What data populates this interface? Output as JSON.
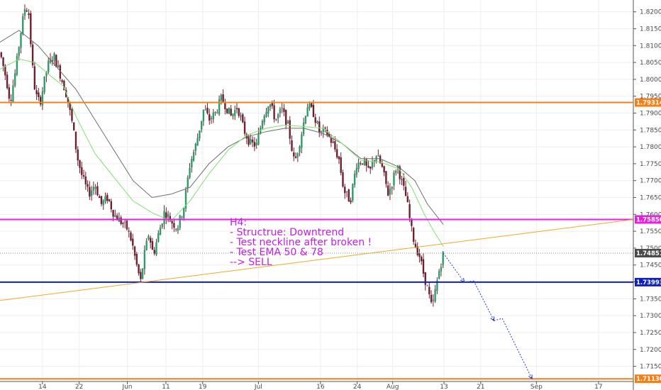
{
  "chart_data": {
    "type": "candlestick",
    "title": "",
    "ylim": [
      1.7105,
      1.8235
    ],
    "y_ticks": [
      "1.82000",
      "1.81500",
      "1.81000",
      "1.80500",
      "1.80000",
      "1.79500",
      "1.79000",
      "1.78500",
      "1.78000",
      "1.77500",
      "1.77000",
      "1.76500",
      "1.76000",
      "1.75500",
      "1.75000",
      "1.74500",
      "1.74000",
      "1.73500",
      "1.73000",
      "1.72500",
      "1.72000",
      "1.71500"
    ],
    "x_range": [
      0,
      100
    ],
    "x_ticks": [
      {
        "label": "14",
        "x": 6.7
      },
      {
        "label": "22",
        "x": 12.5
      },
      {
        "label": "Jun",
        "x": 20.1
      },
      {
        "label": "11",
        "x": 26.2
      },
      {
        "label": "19",
        "x": 32.0
      },
      {
        "label": "Jul",
        "x": 40.8
      },
      {
        "label": "16",
        "x": 50.6
      },
      {
        "label": "24",
        "x": 56.4
      },
      {
        "label": "Aug",
        "x": 62.0
      },
      {
        "label": "13",
        "x": 70.1
      },
      {
        "label": "21",
        "x": 75.9
      },
      {
        "label": "Sep",
        "x": 84.7
      },
      {
        "label": "17",
        "x": 94.5
      }
    ],
    "candle_path": [
      {
        "x": 0,
        "y": 1.808
      },
      {
        "x": 1,
        "y": 1.8
      },
      {
        "x": 1.6,
        "y": 1.7935
      },
      {
        "x": 2.5,
        "y": 1.803
      },
      {
        "x": 3.2,
        "y": 1.813
      },
      {
        "x": 4,
        "y": 1.822
      },
      {
        "x": 4.6,
        "y": 1.819
      },
      {
        "x": 5,
        "y": 1.806
      },
      {
        "x": 5.6,
        "y": 1.7955
      },
      {
        "x": 6.3,
        "y": 1.793
      },
      {
        "x": 7.5,
        "y": 1.804
      },
      {
        "x": 8.5,
        "y": 1.807
      },
      {
        "x": 9.5,
        "y": 1.8015
      },
      {
        "x": 10.5,
        "y": 1.7955
      },
      {
        "x": 11.5,
        "y": 1.786
      },
      {
        "x": 12.2,
        "y": 1.777
      },
      {
        "x": 13,
        "y": 1.771
      },
      {
        "x": 14,
        "y": 1.766
      },
      {
        "x": 15,
        "y": 1.769
      },
      {
        "x": 16,
        "y": 1.763
      },
      {
        "x": 17,
        "y": 1.765
      },
      {
        "x": 18,
        "y": 1.76
      },
      {
        "x": 19,
        "y": 1.758
      },
      {
        "x": 20,
        "y": 1.756
      },
      {
        "x": 20.8,
        "y": 1.752
      },
      {
        "x": 21.5,
        "y": 1.7455
      },
      {
        "x": 22.2,
        "y": 1.74
      },
      {
        "x": 22.8,
        "y": 1.748
      },
      {
        "x": 23.5,
        "y": 1.7545
      },
      {
        "x": 24.2,
        "y": 1.748
      },
      {
        "x": 25,
        "y": 1.754
      },
      {
        "x": 26,
        "y": 1.761
      },
      {
        "x": 27,
        "y": 1.758
      },
      {
        "x": 28,
        "y": 1.756
      },
      {
        "x": 29,
        "y": 1.762
      },
      {
        "x": 30,
        "y": 1.775
      },
      {
        "x": 31,
        "y": 1.781
      },
      {
        "x": 32.2,
        "y": 1.7915
      },
      {
        "x": 33,
        "y": 1.788
      },
      {
        "x": 34,
        "y": 1.79
      },
      {
        "x": 35,
        "y": 1.7945
      },
      {
        "x": 36.5,
        "y": 1.789
      },
      {
        "x": 37.5,
        "y": 1.792
      },
      {
        "x": 38.5,
        "y": 1.785
      },
      {
        "x": 39.5,
        "y": 1.781
      },
      {
        "x": 40.5,
        "y": 1.7805
      },
      {
        "x": 41.5,
        "y": 1.789
      },
      {
        "x": 42.5,
        "y": 1.7935
      },
      {
        "x": 43.5,
        "y": 1.788
      },
      {
        "x": 44.5,
        "y": 1.791
      },
      {
        "x": 45.5,
        "y": 1.786
      },
      {
        "x": 46.5,
        "y": 1.775
      },
      {
        "x": 47.5,
        "y": 1.783
      },
      {
        "x": 48.5,
        "y": 1.7925
      },
      {
        "x": 49.5,
        "y": 1.79
      },
      {
        "x": 50.5,
        "y": 1.784
      },
      {
        "x": 51.5,
        "y": 1.7845
      },
      {
        "x": 52.5,
        "y": 1.781
      },
      {
        "x": 53.5,
        "y": 1.7765
      },
      {
        "x": 54.3,
        "y": 1.767
      },
      {
        "x": 55.3,
        "y": 1.764
      },
      {
        "x": 56.3,
        "y": 1.775
      },
      {
        "x": 57.3,
        "y": 1.776
      },
      {
        "x": 58.3,
        "y": 1.772
      },
      {
        "x": 59.3,
        "y": 1.778
      },
      {
        "x": 60.3,
        "y": 1.774
      },
      {
        "x": 61.3,
        "y": 1.766
      },
      {
        "x": 62,
        "y": 1.77
      },
      {
        "x": 62.7,
        "y": 1.775
      },
      {
        "x": 63.5,
        "y": 1.769
      },
      {
        "x": 64.2,
        "y": 1.7645
      },
      {
        "x": 64.9,
        "y": 1.756
      },
      {
        "x": 65.5,
        "y": 1.751
      },
      {
        "x": 66.2,
        "y": 1.748
      },
      {
        "x": 66.8,
        "y": 1.743
      },
      {
        "x": 67.5,
        "y": 1.738
      },
      {
        "x": 68.2,
        "y": 1.732
      },
      {
        "x": 68.8,
        "y": 1.738
      },
      {
        "x": 69.4,
        "y": 1.744
      },
      {
        "x": 70,
        "y": 1.7485
      }
    ],
    "ema50": [
      {
        "x": 0,
        "y": 1.803
      },
      {
        "x": 3,
        "y": 1.806
      },
      {
        "x": 5.5,
        "y": 1.805
      },
      {
        "x": 8,
        "y": 1.801
      },
      {
        "x": 10,
        "y": 1.798
      },
      {
        "x": 12,
        "y": 1.789
      },
      {
        "x": 15,
        "y": 1.778
      },
      {
        "x": 18,
        "y": 1.771
      },
      {
        "x": 21,
        "y": 1.764
      },
      {
        "x": 24,
        "y": 1.7605
      },
      {
        "x": 27,
        "y": 1.758
      },
      {
        "x": 30,
        "y": 1.764
      },
      {
        "x": 33,
        "y": 1.772
      },
      {
        "x": 36,
        "y": 1.779
      },
      {
        "x": 39,
        "y": 1.7835
      },
      {
        "x": 42,
        "y": 1.7855
      },
      {
        "x": 45,
        "y": 1.7865
      },
      {
        "x": 48,
        "y": 1.786
      },
      {
        "x": 51,
        "y": 1.7855
      },
      {
        "x": 54,
        "y": 1.781
      },
      {
        "x": 57,
        "y": 1.776
      },
      {
        "x": 60,
        "y": 1.7755
      },
      {
        "x": 63,
        "y": 1.7735
      },
      {
        "x": 65,
        "y": 1.768
      },
      {
        "x": 67,
        "y": 1.76
      },
      {
        "x": 68.5,
        "y": 1.755
      },
      {
        "x": 70,
        "y": 1.7505
      }
    ],
    "ema78": [
      {
        "x": 0,
        "y": 1.811
      },
      {
        "x": 3,
        "y": 1.8145
      },
      {
        "x": 6,
        "y": 1.81
      },
      {
        "x": 9,
        "y": 1.8035
      },
      {
        "x": 12,
        "y": 1.797
      },
      {
        "x": 15,
        "y": 1.788
      },
      {
        "x": 18,
        "y": 1.779
      },
      {
        "x": 21,
        "y": 1.77
      },
      {
        "x": 24,
        "y": 1.765
      },
      {
        "x": 27,
        "y": 1.766
      },
      {
        "x": 30,
        "y": 1.768
      },
      {
        "x": 33,
        "y": 1.775
      },
      {
        "x": 36,
        "y": 1.78
      },
      {
        "x": 39,
        "y": 1.783
      },
      {
        "x": 42,
        "y": 1.7845
      },
      {
        "x": 45,
        "y": 1.7855
      },
      {
        "x": 48,
        "y": 1.7855
      },
      {
        "x": 51,
        "y": 1.784
      },
      {
        "x": 54,
        "y": 1.781
      },
      {
        "x": 57,
        "y": 1.7765
      },
      {
        "x": 60,
        "y": 1.7765
      },
      {
        "x": 63,
        "y": 1.774
      },
      {
        "x": 65.5,
        "y": 1.77
      },
      {
        "x": 67.5,
        "y": 1.763
      },
      {
        "x": 70,
        "y": 1.757
      }
    ],
    "levels": [
      {
        "name": "resistance-orange",
        "value": 1.79314,
        "label": "1.79314",
        "color": "#f57f17"
      },
      {
        "name": "neckline-magenta",
        "value": 1.7585,
        "label": "1.75850",
        "color": "#e91ee0"
      },
      {
        "name": "support-blue",
        "value": 1.73993,
        "label": "1.73993",
        "color": "#0d1fc4"
      },
      {
        "name": "bottom-orange",
        "value": 1.7113,
        "label": "1.71130",
        "color": "#f57f17"
      }
    ],
    "current_price": {
      "value": 1.74851,
      "label": "1.74851",
      "color": "#4a4a4a"
    },
    "trendline": {
      "x1": 0,
      "y1": 1.7345,
      "x2": 100,
      "y2": 1.7585,
      "color": "#f5a623"
    },
    "forecast_path": [
      {
        "x": 70,
        "y": 1.7485
      },
      {
        "x": 73.3,
        "y": 1.73993
      },
      {
        "x": 74.8,
        "y": 1.7403
      },
      {
        "x": 78,
        "y": 1.7285
      },
      {
        "x": 79.3,
        "y": 1.7292
      },
      {
        "x": 84,
        "y": 1.7113
      }
    ],
    "note_color": "#c21ee6",
    "annotation_lines": [
      "H4:",
      "- Structrue: Downtrend",
      "- Test neckline after broken !",
      "- Test EMA 50 & 78",
      "--> SELL"
    ],
    "colors": {
      "up": "#2e9c6a",
      "down": "#6b2130",
      "wick": "#6b2130",
      "ema50": "#7ee26f",
      "ema78": "#6e6e6e",
      "grid": "#eeeeee",
      "axis": "#555555"
    }
  }
}
